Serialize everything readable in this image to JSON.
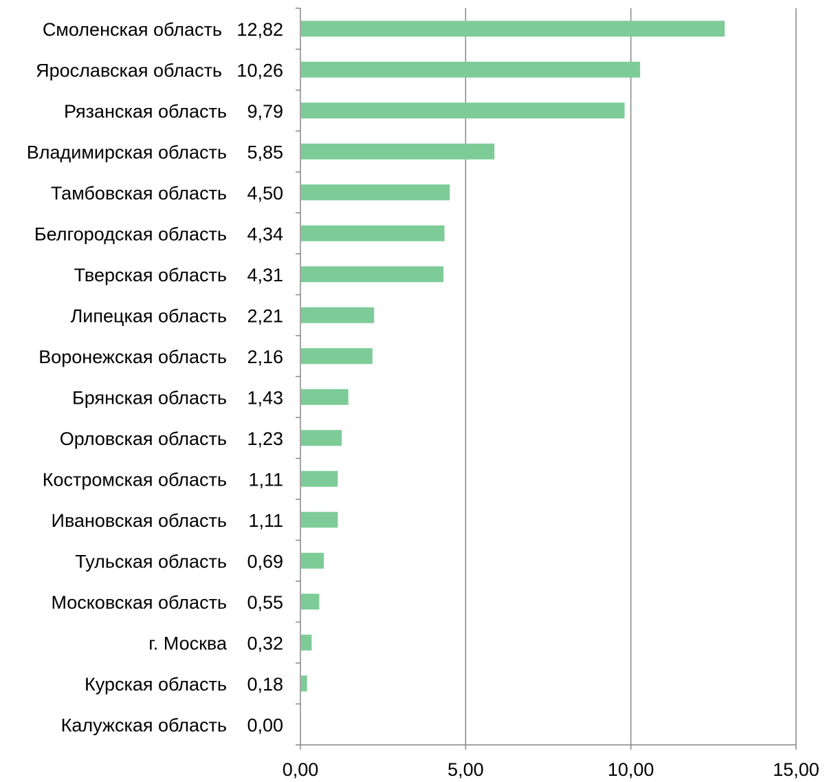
{
  "chart_data": {
    "type": "bar",
    "orientation": "horizontal",
    "categories": [
      "Смоленская область",
      "Ярославская область",
      "Рязанская область",
      "Владимирская область",
      "Тамбовская область",
      "Белгородская область",
      "Тверская область",
      "Липецкая область",
      "Воронежская область",
      "Брянская область",
      "Орловская область",
      "Костромская область",
      "Ивановская область",
      "Тульская область",
      "Московская область",
      "г. Москва",
      "Курская область",
      "Калужская область"
    ],
    "values": [
      12.82,
      10.26,
      9.79,
      5.85,
      4.5,
      4.34,
      4.31,
      2.21,
      2.16,
      1.43,
      1.23,
      1.11,
      1.11,
      0.69,
      0.55,
      0.32,
      0.18,
      0.0
    ],
    "value_labels": [
      "12,82",
      "10,26",
      "9,79",
      "5,85",
      "4,50",
      "4,34",
      "4,31",
      "2,21",
      "2,16",
      "1,43",
      "1,23",
      "1,11",
      "1,11",
      "0,69",
      "0,55",
      "0,32",
      "0,18",
      "0,00"
    ],
    "x_ticks": [
      0,
      5,
      10,
      15
    ],
    "x_tick_labels": [
      "0,00",
      "5,00",
      "10,00",
      "15,00"
    ],
    "xlim": [
      0,
      15
    ],
    "grid": "vertical",
    "title": "",
    "xlabel": "",
    "ylabel": "",
    "colors": {
      "bar": "#7dcc98",
      "grid": "#868686",
      "axis": "#868686"
    }
  }
}
